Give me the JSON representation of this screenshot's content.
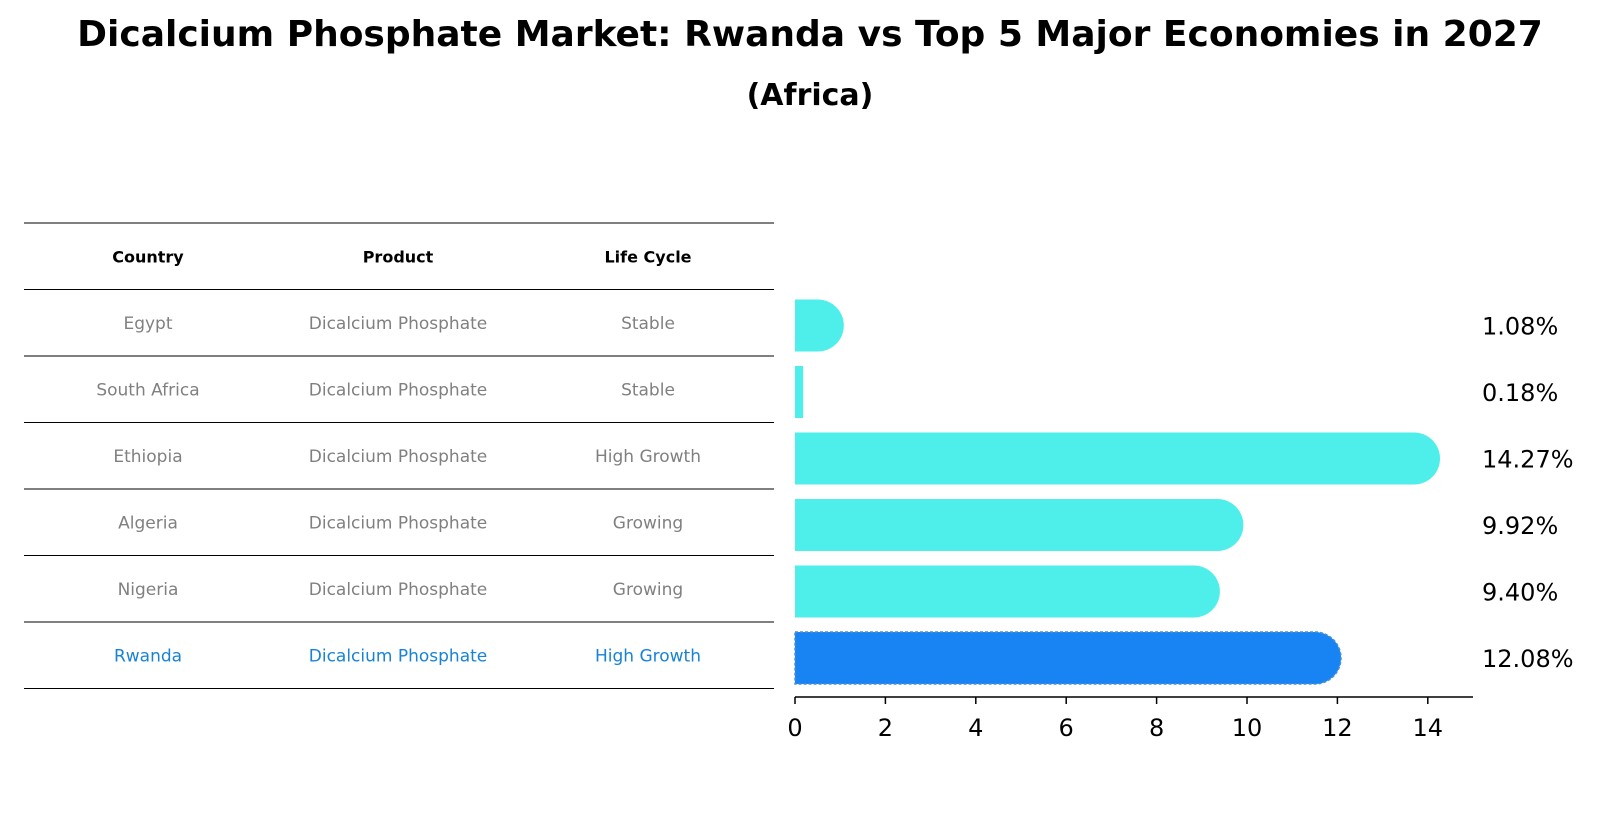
{
  "title": "Dicalcium Phosphate Market: Rwanda vs Top 5 Major Economies in 2027",
  "subtitle": "(Africa)",
  "table": {
    "headers": [
      "Country",
      "Product",
      "Life Cycle"
    ],
    "rows": [
      {
        "country": "Egypt",
        "product": "Dicalcium Phosphate",
        "life_cycle": "Stable",
        "highlight": false
      },
      {
        "country": "South Africa",
        "product": "Dicalcium Phosphate",
        "life_cycle": "Stable",
        "highlight": false
      },
      {
        "country": "Ethiopia",
        "product": "Dicalcium Phosphate",
        "life_cycle": "High Growth",
        "highlight": false
      },
      {
        "country": "Algeria",
        "product": "Dicalcium Phosphate",
        "life_cycle": "Growing",
        "highlight": false
      },
      {
        "country": "Nigeria",
        "product": "Dicalcium Phosphate",
        "life_cycle": "Growing",
        "highlight": false
      },
      {
        "country": "Rwanda",
        "product": "Dicalcium Phosphate",
        "life_cycle": "High Growth",
        "highlight": true
      }
    ]
  },
  "colors": {
    "bar": "#4EEEEB",
    "highlight_bar": "#1883F3",
    "row_text": "#808080",
    "highlight_text": "#1883D6",
    "rule": "#000000"
  },
  "chart_data": {
    "type": "bar",
    "orientation": "horizontal",
    "categories": [
      "Egypt",
      "South Africa",
      "Ethiopia",
      "Algeria",
      "Nigeria",
      "Rwanda"
    ],
    "values": [
      1.08,
      0.18,
      14.27,
      9.92,
      9.4,
      12.08
    ],
    "value_labels": [
      "1.08%",
      "0.18%",
      "14.27%",
      "9.92%",
      "9.40%",
      "12.08%"
    ],
    "highlight": "Rwanda",
    "xlim": [
      0,
      15
    ],
    "xticks": [
      0,
      2,
      4,
      6,
      8,
      10,
      12,
      14
    ],
    "xlabel": "",
    "ylabel": "",
    "grid": false
  }
}
